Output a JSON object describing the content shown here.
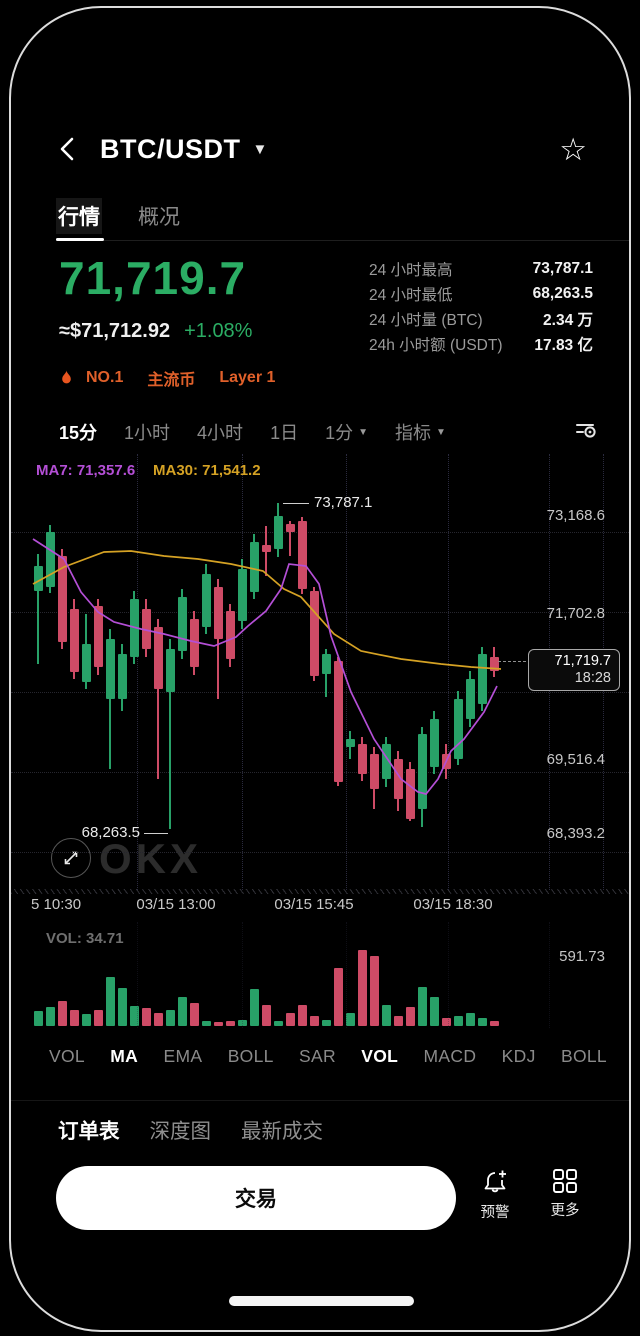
{
  "header": {
    "title": "BTC/USDT",
    "star_glyph": "☆",
    "caret_glyph": "▼"
  },
  "tabs": [
    {
      "label": "行情",
      "active": true
    },
    {
      "label": "概况",
      "active": false
    }
  ],
  "price": {
    "last": "71,719.7",
    "fiat": "≈$71,712.92",
    "change": "+1.08%"
  },
  "badges": {
    "items": [
      "NO.1",
      "主流币",
      "Layer 1"
    ],
    "color": "#E0602A"
  },
  "stats": {
    "rows": [
      {
        "label": "24 小时最高",
        "value": "73,787.1"
      },
      {
        "label": "24 小时最低",
        "value": "68,263.5"
      },
      {
        "label": "24 小时量 (BTC)",
        "value": "2.34 万"
      },
      {
        "label": "24h 小时额 (USDT)",
        "value": "17.83 亿"
      }
    ]
  },
  "toolbar": {
    "items": [
      {
        "label": "15分",
        "active": true,
        "caret": false
      },
      {
        "label": "1小时",
        "active": false,
        "caret": false
      },
      {
        "label": "4小时",
        "active": false,
        "caret": false
      },
      {
        "label": "1日",
        "active": false,
        "caret": false
      },
      {
        "label": "1分",
        "active": false,
        "caret": true
      },
      {
        "label": "指标",
        "active": false,
        "caret": true
      }
    ]
  },
  "chart_data": {
    "type": "candlestick",
    "title": "BTC/USDT 15-minute candles with MA7/MA30, volume",
    "ylim": [
      67500,
      74100
    ],
    "up_color": "#28A168",
    "down_color": "#CE4B66",
    "ma7_color": "#B44FD6",
    "ma30_color": "#D5A224",
    "ma_labels": {
      "ma7": "MA7: 71,357.6",
      "ma30": "MA30: 71,541.2"
    },
    "y_axis": [
      {
        "price": 73168.6,
        "label": "73,168.6"
      },
      {
        "price": 71702.8,
        "label": "71,702.8"
      },
      {
        "price": 69516.4,
        "label": "69,516.4"
      },
      {
        "price": 68393.2,
        "label": "68,393.2"
      }
    ],
    "x_axis": [
      "5 10:30",
      "03/15 13:00",
      "03/15 15:45",
      "03/15 18:30"
    ],
    "annotations": {
      "high": "73,787.1",
      "low": "68,263.5"
    },
    "last_price_tag": {
      "price": "71,719.7",
      "time": "18:28"
    },
    "candles": [
      [
        27,
        72045,
        72600,
        70950,
        72420
      ],
      [
        39,
        72105,
        73035,
        72015,
        72930
      ],
      [
        51,
        72570,
        72675,
        71175,
        71280
      ],
      [
        63,
        71775,
        71925,
        70725,
        70830
      ],
      [
        75,
        70680,
        71700,
        70575,
        71250
      ],
      [
        87,
        71820,
        71925,
        70785,
        70905
      ],
      [
        99,
        70425,
        71475,
        69375,
        71325
      ],
      [
        111,
        70425,
        71250,
        70245,
        71100
      ],
      [
        123,
        71055,
        72045,
        70950,
        71925
      ],
      [
        135,
        71775,
        71925,
        71055,
        71175
      ],
      [
        147,
        71505,
        71625,
        69225,
        70575
      ],
      [
        159,
        70530,
        71325,
        68475,
        71175
      ],
      [
        171,
        71145,
        72075,
        71025,
        71955
      ],
      [
        183,
        71625,
        71745,
        70785,
        70905
      ],
      [
        195,
        71505,
        72450,
        71400,
        72300
      ],
      [
        207,
        72105,
        72225,
        70425,
        71325
      ],
      [
        219,
        71745,
        71850,
        70905,
        71025
      ],
      [
        231,
        71595,
        72525,
        71475,
        72375
      ],
      [
        243,
        72030,
        72900,
        71925,
        72780
      ],
      [
        255,
        72735,
        73020,
        72270,
        72630
      ],
      [
        267,
        72675,
        73365,
        72555,
        73170
      ],
      [
        279,
        73050,
        73095,
        72570,
        72930
      ],
      [
        291,
        73095,
        73155,
        72000,
        72075
      ],
      [
        303,
        72045,
        72105,
        70695,
        70770
      ],
      [
        315,
        70800,
        71175,
        70455,
        71100
      ],
      [
        327,
        70995,
        71055,
        69120,
        69180
      ],
      [
        339,
        69705,
        69945,
        69525,
        69825
      ],
      [
        351,
        69750,
        69855,
        69195,
        69300
      ],
      [
        363,
        69600,
        69705,
        68775,
        69075
      ],
      [
        375,
        69225,
        69855,
        69105,
        69750
      ],
      [
        387,
        69525,
        69645,
        68745,
        68925
      ],
      [
        399,
        69375,
        69480,
        68595,
        68625
      ],
      [
        411,
        68775,
        70005,
        68505,
        69900
      ],
      [
        423,
        69405,
        70245,
        69300,
        70125
      ],
      [
        435,
        69600,
        69750,
        69225,
        69375
      ],
      [
        447,
        69525,
        70545,
        69435,
        70425
      ],
      [
        459,
        70125,
        70845,
        70005,
        70725
      ],
      [
        471,
        70350,
        71205,
        70245,
        71100
      ],
      [
        483,
        71055,
        71205,
        70755,
        70845
      ]
    ],
    "ma7": [
      [
        22,
        72825
      ],
      [
        53,
        72525
      ],
      [
        70,
        72030
      ],
      [
        87,
        71730
      ],
      [
        103,
        71580
      ],
      [
        130,
        71475
      ],
      [
        153,
        71400
      ],
      [
        180,
        71295
      ],
      [
        203,
        71220
      ],
      [
        225,
        71355
      ],
      [
        237,
        71520
      ],
      [
        255,
        71745
      ],
      [
        270,
        72075
      ],
      [
        278,
        72450
      ],
      [
        295,
        72420
      ],
      [
        308,
        72150
      ],
      [
        320,
        71370
      ],
      [
        340,
        70530
      ],
      [
        363,
        69825
      ],
      [
        390,
        69225
      ],
      [
        407,
        69030
      ],
      [
        415,
        69000
      ],
      [
        427,
        69225
      ],
      [
        440,
        69645
      ],
      [
        453,
        69825
      ],
      [
        473,
        70230
      ],
      [
        486,
        70620
      ]
    ],
    "ma30": [
      [
        22,
        72150
      ],
      [
        53,
        72405
      ],
      [
        93,
        72630
      ],
      [
        120,
        72645
      ],
      [
        153,
        72570
      ],
      [
        187,
        72525
      ],
      [
        220,
        72450
      ],
      [
        252,
        72345
      ],
      [
        273,
        72075
      ],
      [
        290,
        71955
      ],
      [
        323,
        71400
      ],
      [
        350,
        71145
      ],
      [
        390,
        71025
      ],
      [
        430,
        70950
      ],
      [
        460,
        70905
      ],
      [
        490,
        70875
      ]
    ],
    "volume": {
      "label": "VOL: 34.71",
      "axis_label": "591.73",
      "values": [
        14,
        18,
        24,
        15,
        11,
        15,
        47,
        36,
        19,
        17,
        12,
        15,
        28,
        22,
        5,
        4,
        5,
        6,
        35,
        20,
        5,
        12,
        20,
        10,
        6,
        55,
        12,
        72,
        67,
        20,
        10,
        18,
        37,
        28,
        8,
        10,
        12,
        8,
        5
      ]
    }
  },
  "watermark": "OKX",
  "indicators": [
    {
      "label": "VOL",
      "active": false
    },
    {
      "label": "MA",
      "active": true
    },
    {
      "label": "EMA",
      "active": false
    },
    {
      "label": "BOLL",
      "active": false
    },
    {
      "label": "SAR",
      "active": false
    },
    {
      "label": "VOL",
      "active": true
    },
    {
      "label": "MACD",
      "active": false
    },
    {
      "label": "KDJ",
      "active": false
    },
    {
      "label": "BOLL",
      "active": false
    }
  ],
  "panel_tabs": [
    {
      "label": "订单表",
      "active": true
    },
    {
      "label": "深度图",
      "active": false
    },
    {
      "label": "最新成交",
      "active": false
    }
  ],
  "actions": {
    "trade": "交易",
    "alert": "预警",
    "more": "更多"
  }
}
